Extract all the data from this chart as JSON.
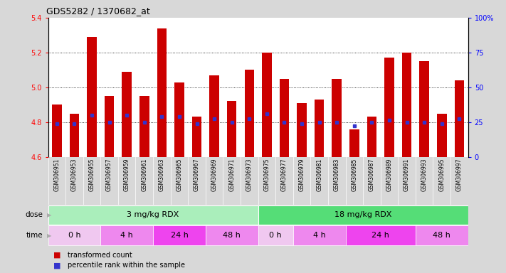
{
  "title": "GDS5282 / 1370682_at",
  "samples": [
    "GSM306951",
    "GSM306953",
    "GSM306955",
    "GSM306957",
    "GSM306959",
    "GSM306961",
    "GSM306963",
    "GSM306965",
    "GSM306967",
    "GSM306969",
    "GSM306971",
    "GSM306973",
    "GSM306975",
    "GSM306977",
    "GSM306979",
    "GSM306981",
    "GSM306983",
    "GSM306985",
    "GSM306987",
    "GSM306989",
    "GSM306991",
    "GSM306993",
    "GSM306995",
    "GSM306997"
  ],
  "bar_values": [
    4.9,
    4.85,
    5.29,
    4.95,
    5.09,
    4.95,
    5.34,
    5.03,
    4.83,
    5.07,
    4.92,
    5.1,
    5.2,
    5.05,
    4.91,
    4.93,
    5.05,
    4.76,
    4.83,
    5.17,
    5.2,
    5.15,
    4.85,
    5.04
  ],
  "percentile_values": [
    4.79,
    4.79,
    4.84,
    4.8,
    4.84,
    4.8,
    4.83,
    4.83,
    4.79,
    4.82,
    4.8,
    4.82,
    4.85,
    4.8,
    4.79,
    4.8,
    4.8,
    4.78,
    4.8,
    4.81,
    4.8,
    4.8,
    4.79,
    4.82
  ],
  "ymin": 4.6,
  "ymax": 5.4,
  "yticks": [
    4.6,
    4.8,
    5.0,
    5.2,
    5.4
  ],
  "right_yticks": [
    0,
    25,
    50,
    75,
    100
  ],
  "bar_color": "#cc0000",
  "dot_color": "#3333cc",
  "background_color": "#d8d8d8",
  "plot_bg_color": "#ffffff",
  "tick_area_color": "#d0d0d0",
  "dose_groups": [
    {
      "label": "3 mg/kg RDX",
      "start": 0,
      "end": 12,
      "color": "#aaeebb"
    },
    {
      "label": "18 mg/kg RDX",
      "start": 12,
      "end": 24,
      "color": "#55dd77"
    }
  ],
  "time_groups": [
    {
      "label": "0 h",
      "start": 0,
      "end": 3,
      "color": "#f0c8f0"
    },
    {
      "label": "4 h",
      "start": 3,
      "end": 6,
      "color": "#ee88ee"
    },
    {
      "label": "24 h",
      "start": 6,
      "end": 9,
      "color": "#ee44ee"
    },
    {
      "label": "48 h",
      "start": 9,
      "end": 12,
      "color": "#ee88ee"
    },
    {
      "label": "0 h",
      "start": 12,
      "end": 14,
      "color": "#f0c8f0"
    },
    {
      "label": "4 h",
      "start": 14,
      "end": 17,
      "color": "#ee88ee"
    },
    {
      "label": "24 h",
      "start": 17,
      "end": 21,
      "color": "#ee44ee"
    },
    {
      "label": "48 h",
      "start": 21,
      "end": 24,
      "color": "#ee88ee"
    }
  ],
  "legend_items": [
    {
      "label": "transformed count",
      "color": "#cc0000"
    },
    {
      "label": "percentile rank within the sample",
      "color": "#3333cc"
    }
  ],
  "grid_lines": [
    4.8,
    5.0,
    5.2
  ],
  "dose_arrow_color": "#aaaaaa",
  "time_arrow_color": "#aaaaaa"
}
